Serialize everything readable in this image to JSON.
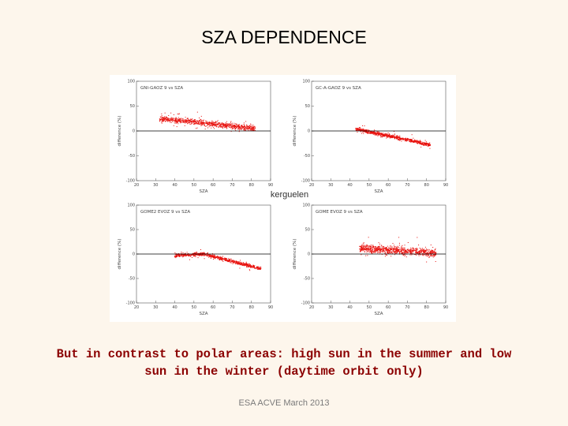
{
  "slide": {
    "title": "SZA DEPENDENCE",
    "center_label": "kerguelen",
    "caption_line1": "But in contrast to polar areas: high sun in the summer and low",
    "caption_line2": "sun in the winter (daytime orbit only)",
    "footer": "ESA ACVE March 2013"
  },
  "colors": {
    "points": "#e8100c",
    "zero_line": "#000000",
    "frame": "#555555",
    "caption": "#8b0000"
  },
  "chart_data": [
    {
      "type": "scatter",
      "title": "GNI-GAOZ 9 vs SZA",
      "xlabel": "SZA",
      "ylabel": "difference (%)",
      "xlim": [
        20,
        90
      ],
      "ylim": [
        -100,
        100
      ],
      "xticks": [
        20,
        30,
        40,
        50,
        60,
        70,
        80,
        90
      ],
      "yticks": [
        100,
        50,
        0,
        -50,
        -100
      ],
      "reference_line_y": 0,
      "series": [
        {
          "x_range": [
            32,
            82
          ],
          "trend": [
            [
              32,
              25
            ],
            [
              82,
              5
            ]
          ],
          "spread": 10,
          "count": 900
        }
      ]
    },
    {
      "type": "scatter",
      "title": "GC-A-GAOZ 9 vs SZA",
      "xlabel": "SZA",
      "ylabel": "difference (%)",
      "xlim": [
        20,
        90
      ],
      "ylim": [
        -100,
        100
      ],
      "xticks": [
        20,
        30,
        40,
        50,
        60,
        70,
        80,
        90
      ],
      "yticks": [
        100,
        50,
        0,
        -50,
        -100
      ],
      "reference_line_y": 0,
      "series": [
        {
          "x_range": [
            43,
            82
          ],
          "trend": [
            [
              43,
              4
            ],
            [
              82,
              -28
            ]
          ],
          "spread": 6,
          "count": 800
        }
      ]
    },
    {
      "type": "scatter",
      "title": "GOME2 EVOZ 9 vs SZA",
      "xlabel": "SZA",
      "ylabel": "difference (%)",
      "xlim": [
        20,
        90
      ],
      "ylim": [
        -100,
        100
      ],
      "xticks": [
        20,
        30,
        40,
        50,
        60,
        70,
        80,
        90
      ],
      "yticks": [
        100,
        50,
        0,
        -50,
        -100
      ],
      "reference_line_y": 0,
      "series": [
        {
          "x_range": [
            40,
            85
          ],
          "trend": [
            [
              40,
              -3
            ],
            [
              55,
              0
            ],
            [
              85,
              -30
            ]
          ],
          "spread": 6,
          "count": 800
        }
      ]
    },
    {
      "type": "scatter",
      "title": "GOME EVOZ 9 vs SZA",
      "xlabel": "SZA",
      "ylabel": "difference (%)",
      "xlim": [
        20,
        90
      ],
      "ylim": [
        -100,
        100
      ],
      "xticks": [
        20,
        30,
        40,
        50,
        60,
        70,
        80,
        90
      ],
      "yticks": [
        100,
        50,
        0,
        -50,
        -100
      ],
      "reference_line_y": 0,
      "series": [
        {
          "x_range": [
            45,
            85
          ],
          "trend": [
            [
              45,
              12
            ],
            [
              85,
              2
            ]
          ],
          "spread": 14,
          "count": 900
        }
      ]
    }
  ]
}
